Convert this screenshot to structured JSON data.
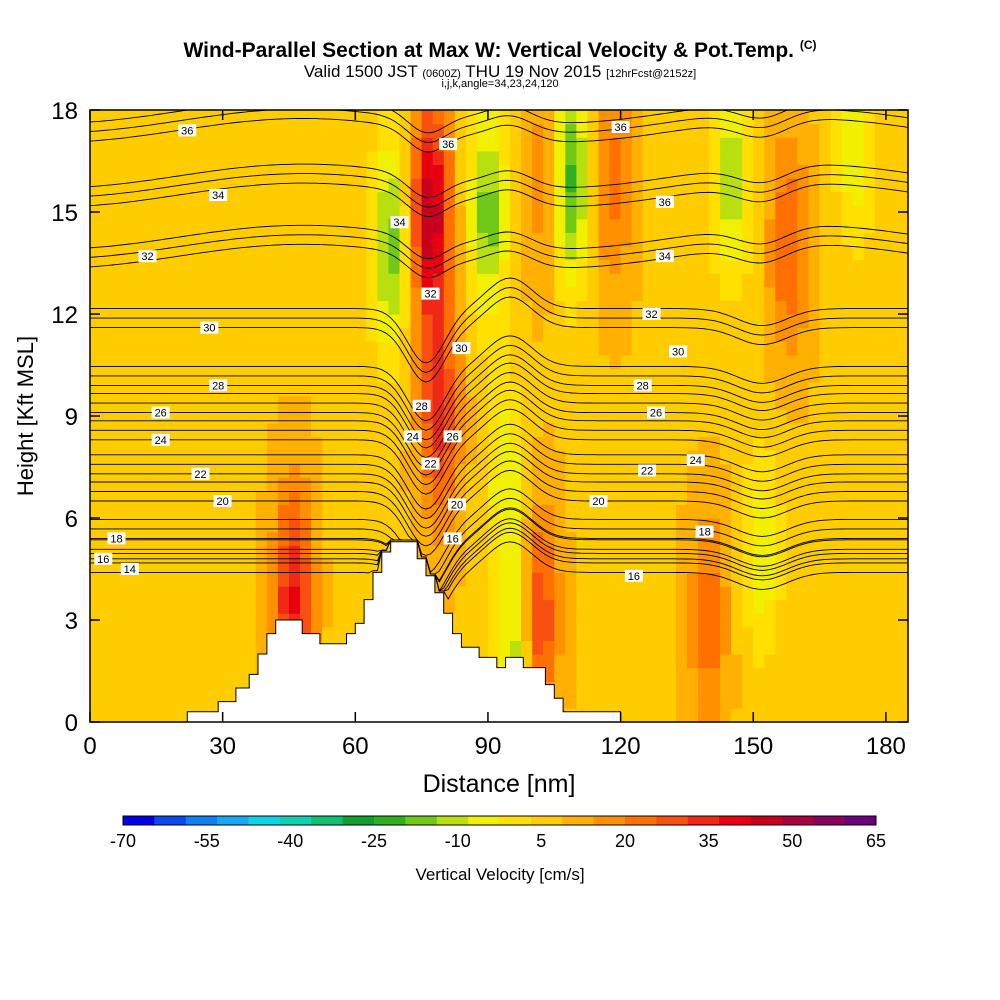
{
  "title": {
    "main": "Wind-Parallel Section at Max W: Vertical Velocity & Pot.Temp.",
    "main_suffix": "(C)",
    "valid_prefix": "Valid 1500 JST",
    "valid_z": "(0600Z)",
    "valid_date": "THU 19 Nov 2015",
    "forecast": "[12hrFcst@2152z]",
    "indices": "i,j,k,angle=34,23,24,120"
  },
  "colors": {
    "colorbar": [
      "#0000e8",
      "#0a4af0",
      "#127ff5",
      "#18a8f2",
      "#10d2e6",
      "#10d0b0",
      "#10c070",
      "#10a030",
      "#30b020",
      "#70c818",
      "#b8e010",
      "#f0f000",
      "#ffe000",
      "#ffcc00",
      "#ffb000",
      "#ff9000",
      "#ff7000",
      "#f85010",
      "#f02818",
      "#e80010",
      "#c80020",
      "#a80040",
      "#880060",
      "#6a0080"
    ],
    "frame": "#000000",
    "contour": "#000000",
    "terrain": "#ffffff"
  },
  "chart_data": {
    "type": "heatmap",
    "xlabel": "Distance [nm]",
    "ylabel": "Height [Kft MSL]",
    "xlim": [
      0,
      185
    ],
    "ylim": [
      0,
      18
    ],
    "xticks": [
      0,
      30,
      60,
      90,
      120,
      150,
      180
    ],
    "yticks": [
      0,
      3,
      6,
      9,
      12,
      15,
      18
    ],
    "colorbar": {
      "label": "Vertical Velocity [cm/s]",
      "ticks": [
        -70,
        -55,
        -40,
        -25,
        -10,
        5,
        20,
        35,
        50,
        65
      ],
      "range": [
        -70,
        65
      ]
    },
    "background_w": 8,
    "w_features": [
      {
        "x": 46,
        "y": 3.6,
        "w": 30
      },
      {
        "x": 60,
        "y": 3.5,
        "w": -5
      },
      {
        "x": 68,
        "y": 14,
        "w": -25
      },
      {
        "x": 77,
        "y": 15,
        "w": 40
      },
      {
        "x": 79,
        "y": 9,
        "w": 25
      },
      {
        "x": 90,
        "y": 15,
        "w": -25
      },
      {
        "x": 94,
        "y": 7,
        "w": -15
      },
      {
        "x": 97,
        "y": 2,
        "w": -25
      },
      {
        "x": 101,
        "y": 3,
        "w": 30
      },
      {
        "x": 104,
        "y": 16,
        "w": 18
      },
      {
        "x": 108,
        "y": 16,
        "w": -35
      },
      {
        "x": 118,
        "y": 16,
        "w": 15
      },
      {
        "x": 140,
        "y": 3,
        "w": 15
      },
      {
        "x": 145,
        "y": 16,
        "w": -20
      },
      {
        "x": 152,
        "y": 5,
        "w": -15
      },
      {
        "x": 158,
        "y": 14,
        "w": 18
      },
      {
        "x": 173,
        "y": 17,
        "w": -15
      },
      {
        "x": 170,
        "y": 4,
        "w": -5
      }
    ],
    "theta_contours": {
      "levels": [
        14,
        16,
        18,
        20,
        22,
        24,
        26,
        28,
        30,
        32,
        34,
        36
      ],
      "labels": [
        {
          "text": "36",
          "x": 22,
          "y": 17.4
        },
        {
          "text": "36",
          "x": 81,
          "y": 17.0
        },
        {
          "text": "36",
          "x": 120,
          "y": 17.5
        },
        {
          "text": "36",
          "x": 130,
          "y": 15.3
        },
        {
          "text": "34",
          "x": 29,
          "y": 15.5
        },
        {
          "text": "34",
          "x": 70,
          "y": 14.7
        },
        {
          "text": "34",
          "x": 130,
          "y": 13.7
        },
        {
          "text": "32",
          "x": 13,
          "y": 13.7
        },
        {
          "text": "32",
          "x": 77,
          "y": 12.6
        },
        {
          "text": "32",
          "x": 127,
          "y": 12.0
        },
        {
          "text": "30",
          "x": 27,
          "y": 11.6
        },
        {
          "text": "30",
          "x": 84,
          "y": 11.0
        },
        {
          "text": "30",
          "x": 133,
          "y": 10.9
        },
        {
          "text": "28",
          "x": 29,
          "y": 9.9
        },
        {
          "text": "28",
          "x": 75,
          "y": 9.3
        },
        {
          "text": "28",
          "x": 125,
          "y": 9.9
        },
        {
          "text": "26",
          "x": 16,
          "y": 9.1
        },
        {
          "text": "26",
          "x": 82,
          "y": 8.4
        },
        {
          "text": "26",
          "x": 128,
          "y": 9.1
        },
        {
          "text": "24",
          "x": 16,
          "y": 8.3
        },
        {
          "text": "24",
          "x": 73,
          "y": 8.4
        },
        {
          "text": "24",
          "x": 137,
          "y": 7.7
        },
        {
          "text": "22",
          "x": 25,
          "y": 7.3
        },
        {
          "text": "22",
          "x": 77,
          "y": 7.6
        },
        {
          "text": "22",
          "x": 126,
          "y": 7.4
        },
        {
          "text": "20",
          "x": 30,
          "y": 6.5
        },
        {
          "text": "20",
          "x": 83,
          "y": 6.4
        },
        {
          "text": "20",
          "x": 115,
          "y": 6.5
        },
        {
          "text": "18",
          "x": 6,
          "y": 5.4
        },
        {
          "text": "18",
          "x": 139,
          "y": 5.6
        },
        {
          "text": "16",
          "x": 3,
          "y": 4.8
        },
        {
          "text": "16",
          "x": 82,
          "y": 5.4
        },
        {
          "text": "16",
          "x": 123,
          "y": 4.3
        },
        {
          "text": "14",
          "x": 9,
          "y": 4.5
        }
      ]
    },
    "terrain_profile": [
      [
        0,
        0
      ],
      [
        22,
        0
      ],
      [
        22,
        0.3
      ],
      [
        29,
        0.3
      ],
      [
        29,
        0.6
      ],
      [
        33,
        0.6
      ],
      [
        33,
        1.0
      ],
      [
        36,
        1.0
      ],
      [
        36,
        1.4
      ],
      [
        38,
        1.4
      ],
      [
        38,
        2.0
      ],
      [
        40,
        2.0
      ],
      [
        40,
        2.6
      ],
      [
        42,
        2.6
      ],
      [
        42,
        3.0
      ],
      [
        48,
        3.0
      ],
      [
        48,
        2.6
      ],
      [
        52,
        2.6
      ],
      [
        52,
        2.3
      ],
      [
        58,
        2.3
      ],
      [
        58,
        2.6
      ],
      [
        60,
        2.6
      ],
      [
        60,
        2.9
      ],
      [
        62,
        2.9
      ],
      [
        62,
        3.6
      ],
      [
        64,
        3.6
      ],
      [
        64,
        4.4
      ],
      [
        66,
        4.4
      ],
      [
        66,
        5.0
      ],
      [
        68,
        5.0
      ],
      [
        68,
        5.3
      ],
      [
        74,
        5.3
      ],
      [
        74,
        4.8
      ],
      [
        76,
        4.8
      ],
      [
        76,
        4.3
      ],
      [
        78,
        4.3
      ],
      [
        78,
        3.8
      ],
      [
        80,
        3.8
      ],
      [
        80,
        3.2
      ],
      [
        82,
        3.2
      ],
      [
        82,
        2.6
      ],
      [
        84,
        2.6
      ],
      [
        84,
        2.2
      ],
      [
        88,
        2.2
      ],
      [
        88,
        1.9
      ],
      [
        92,
        1.9
      ],
      [
        92,
        1.6
      ],
      [
        94,
        1.6
      ],
      [
        94,
        1.9
      ],
      [
        98,
        1.9
      ],
      [
        98,
        1.6
      ],
      [
        103,
        1.6
      ],
      [
        103,
        1.1
      ],
      [
        105,
        1.1
      ],
      [
        105,
        0.7
      ],
      [
        107,
        0.7
      ],
      [
        107,
        0.3
      ],
      [
        120,
        0.3
      ],
      [
        120,
        0
      ],
      [
        185,
        0
      ]
    ]
  }
}
